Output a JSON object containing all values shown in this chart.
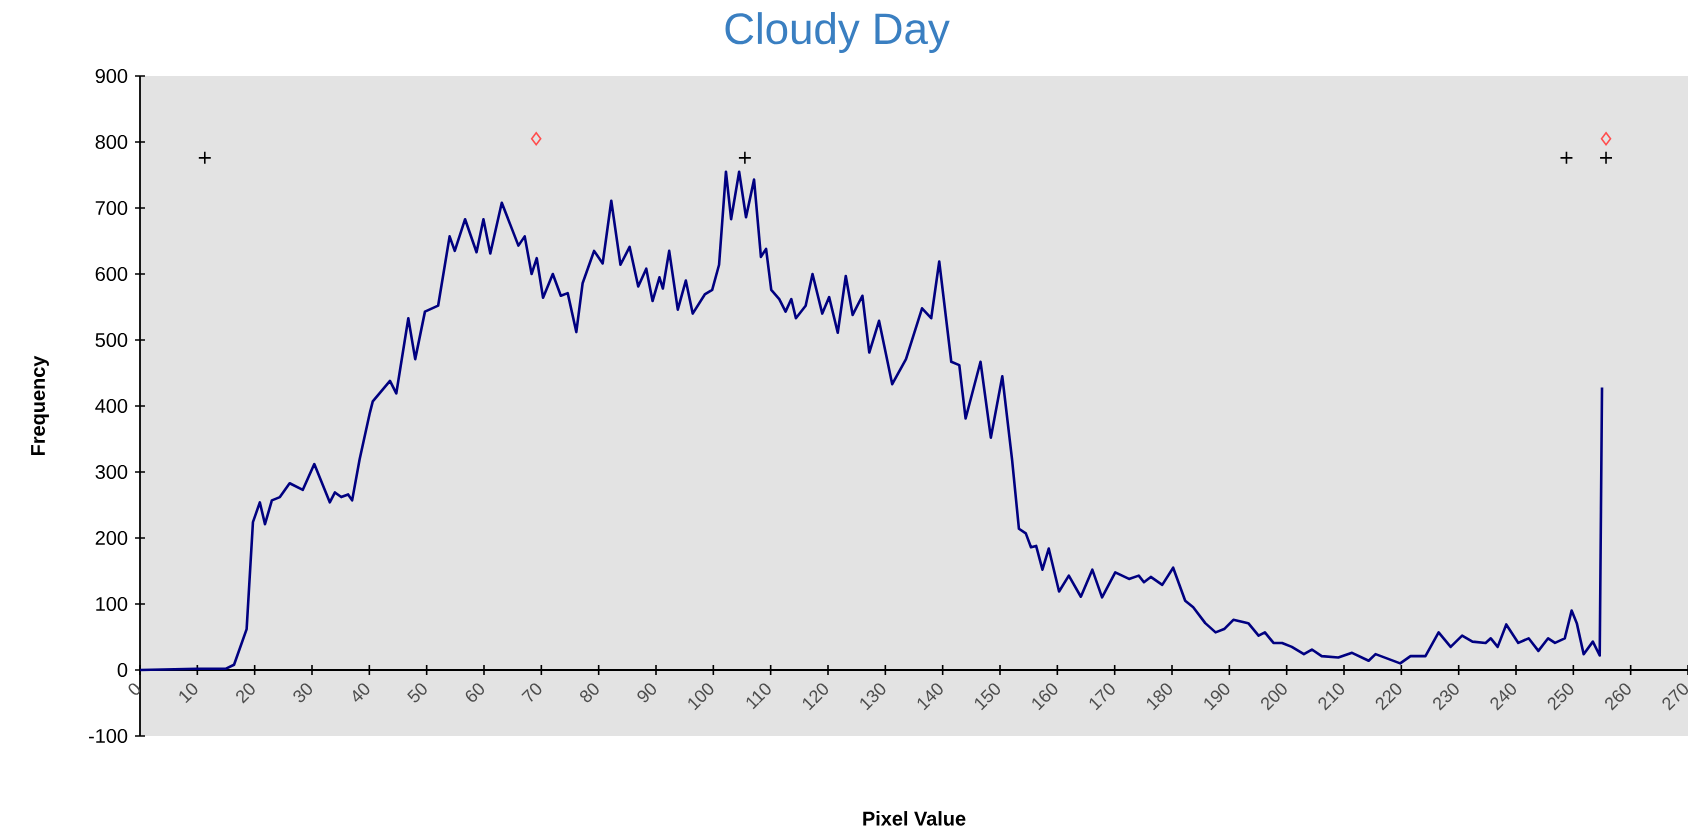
{
  "chart_data": {
    "type": "line",
    "title": "Cloudy Day",
    "xlabel": "Pixel Value",
    "ylabel": "Frequency",
    "xlim": [
      0,
      270
    ],
    "ylim": [
      -100,
      900
    ],
    "xticks": [
      0,
      10,
      20,
      30,
      40,
      50,
      60,
      70,
      80,
      90,
      100,
      110,
      120,
      130,
      140,
      150,
      160,
      170,
      180,
      190,
      200,
      210,
      220,
      230,
      240,
      250,
      260,
      270
    ],
    "yticks": [
      -100,
      0,
      100,
      200,
      300,
      400,
      500,
      600,
      700,
      800,
      900
    ],
    "series": [
      {
        "color": "#000080",
        "line_style": "solid",
        "x": [
          0,
          10,
          15,
          16.4,
          18.6,
          19.7,
          20.9,
          21.8,
          23,
          24.4,
          26.1,
          28.4,
          30.4,
          33.1,
          34,
          35.1,
          36.3,
          37,
          38.3,
          40.1,
          40.6,
          43.6,
          44.7,
          46.8,
          48,
          49.7,
          52,
          54,
          54.9,
          56.7,
          58.7,
          59.9,
          61.1,
          63.1,
          66,
          67.1,
          68.3,
          69.2,
          70.3,
          72,
          73.4,
          74.6,
          76.1,
          77.2,
          79.2,
          80.7,
          82.2,
          83.8,
          85.4,
          86.9,
          88.3,
          89.4,
          90.6,
          91.2,
          92.3,
          93.8,
          95.2,
          96.4,
          98.5,
          99.8,
          101,
          102.2,
          103.1,
          104.5,
          105.7,
          107.1,
          108.3,
          109.2,
          110.1,
          111.5,
          112.6,
          113.6,
          114.4,
          116.1,
          117.3,
          119,
          120.2,
          121.7,
          123.1,
          124.3,
          126,
          127.2,
          128.9,
          131.2,
          133.6,
          136.4,
          138,
          139.4,
          141.5,
          142.9,
          144,
          146.6,
          148.4,
          150.4,
          152.1,
          153.3,
          154.5,
          155.4,
          156.3,
          157.4,
          158.5,
          160.3,
          162,
          164.1,
          166.1,
          167.8,
          170.1,
          172.5,
          174.2,
          175.1,
          176.3,
          178.3,
          180.2,
          182.3,
          183.7,
          185.8,
          187.6,
          189.1,
          190.7,
          193.3,
          195.1,
          196.2,
          197.7,
          199.2,
          200.9,
          203,
          204.4,
          206.1,
          209,
          211.4,
          214.3,
          215.5,
          219.8,
          221.6,
          224.2,
          226.5,
          228.6,
          230.6,
          232.4,
          234.7,
          235.6,
          236.8,
          238.3,
          240.4,
          242.2,
          243.9,
          245.6,
          246.8,
          248.5,
          249.7,
          250.6,
          251.8,
          253.4,
          254.6,
          255
        ],
        "values": [
          0,
          2,
          2,
          8,
          62,
          224,
          254,
          221,
          257,
          262,
          283,
          273,
          312,
          254,
          269,
          262,
          266,
          257,
          319,
          390,
          407,
          438,
          419,
          533,
          471,
          543,
          552,
          657,
          635,
          683,
          633,
          683,
          631,
          708,
          643,
          657,
          600,
          624,
          564,
          600,
          567,
          571,
          512,
          586,
          635,
          616,
          711,
          614,
          641,
          581,
          608,
          559,
          595,
          578,
          635,
          546,
          590,
          540,
          569,
          576,
          614,
          755,
          683,
          755,
          686,
          743,
          626,
          638,
          576,
          562,
          543,
          562,
          533,
          552,
          600,
          540,
          565,
          511,
          597,
          538,
          567,
          481,
          529,
          433,
          471,
          548,
          533,
          619,
          467,
          462,
          381,
          467,
          352,
          445,
          319,
          214,
          207,
          186,
          188,
          152,
          184,
          119,
          143,
          111,
          152,
          110,
          148,
          138,
          143,
          133,
          141,
          129,
          155,
          105,
          95,
          71,
          57,
          62,
          76,
          71,
          52,
          57,
          41,
          41,
          35,
          24,
          31,
          21,
          19,
          26,
          14,
          24,
          10,
          21,
          21,
          57,
          35,
          52,
          43,
          41,
          48,
          35,
          69,
          41,
          48,
          29,
          48,
          41,
          48,
          90,
          71,
          24,
          43,
          22,
          428
        ]
      },
      {
        "type": "scatter",
        "marker": "cross",
        "color": "#000000",
        "x": [
          11.3,
          105.5,
          248.8,
          255.7
        ],
        "values": [
          776,
          776,
          776,
          776
        ]
      },
      {
        "type": "scatter",
        "marker": "diamond",
        "color": "#ff4d4d",
        "x": [
          69.1,
          255.7
        ],
        "values": [
          805,
          805
        ]
      }
    ]
  }
}
